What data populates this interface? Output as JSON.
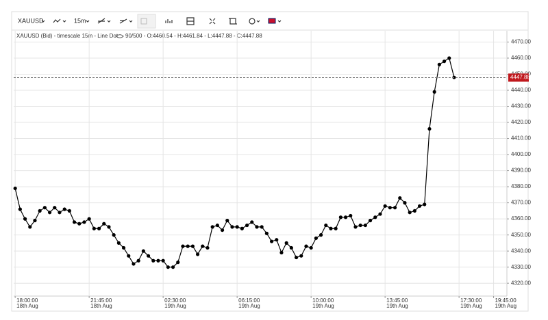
{
  "toolbar": {
    "symbol": "XAUUSD",
    "timeframe": "15m"
  },
  "chart_data": {
    "type": "line",
    "title": "XAUUSD (Bid) - timescale 15m - Line Dot",
    "subtitle": "90/500 - O:4460.54 - H:4461.84 - L:4447.88 - C:4447.88",
    "color": "#000000",
    "marker": true,
    "grid": true,
    "values": [
      4379,
      4366,
      4360,
      4355,
      4359,
      4365,
      4367,
      4364,
      4367,
      4364,
      4366,
      4365,
      4358,
      4357,
      4358,
      4360,
      4354,
      4354,
      4357,
      4355,
      4350,
      4345,
      4342,
      4337,
      4332,
      4334,
      4340,
      4337,
      4334,
      4334,
      4334,
      4330,
      4330,
      4333,
      4343,
      4343,
      4343,
      4338,
      4343,
      4342,
      4355,
      4356,
      4353,
      4359,
      4355,
      4355,
      4354,
      4356,
      4358,
      4355,
      4355,
      4351,
      4346,
      4347,
      4339,
      4345,
      4342,
      4336,
      4337,
      4343,
      4342,
      4348,
      4350,
      4356,
      4354,
      4354,
      4361,
      4361,
      4362,
      4355,
      4356,
      4356,
      4359,
      4361,
      4363,
      4368,
      4367,
      4367,
      4373,
      4370,
      4364,
      4365,
      4368,
      4369,
      4416,
      4439,
      4456,
      4458,
      4460,
      4448
    ],
    "last_value": 4447.88,
    "last_color": "#c0181d",
    "xlim": [
      -0.3,
      99.7
    ],
    "xticks": [
      {
        "value": 0,
        "label": "18:00:00",
        "date": "18th Aug"
      },
      {
        "value": 15,
        "label": "21:45:00",
        "date": "18th Aug"
      },
      {
        "value": 30,
        "label": "02:30:00",
        "date": "19th Aug"
      },
      {
        "value": 45,
        "label": "06:15:00",
        "date": "19th Aug"
      },
      {
        "value": 60,
        "label": "10:00:00",
        "date": "19th Aug"
      },
      {
        "value": 75,
        "label": "13:45:00",
        "date": "19th Aug"
      },
      {
        "value": 90,
        "label": "17:30:00",
        "date": "19th Aug"
      },
      {
        "value": 97,
        "label": "19:45:00",
        "date": "19th Aug"
      }
    ],
    "ylim": [
      4312,
      4477
    ],
    "yticks": [
      {
        "value": 4320,
        "label": "4320.00"
      },
      {
        "value": 4330,
        "label": "4330.00"
      },
      {
        "value": 4340,
        "label": "4340.00"
      },
      {
        "value": 4350,
        "label": "4350.00"
      },
      {
        "value": 4360,
        "label": "4360.00"
      },
      {
        "value": 4370,
        "label": "4370.00"
      },
      {
        "value": 4380,
        "label": "4380.00"
      },
      {
        "value": 4390,
        "label": "4390.00"
      },
      {
        "value": 4400,
        "label": "4400.00"
      },
      {
        "value": 4410,
        "label": "4410.00"
      },
      {
        "value": 4420,
        "label": "4420.00"
      },
      {
        "value": 4430,
        "label": "4430.00"
      },
      {
        "value": 4440,
        "label": "4440.00"
      },
      {
        "value": 4450,
        "label": "4450.00"
      },
      {
        "value": 4460,
        "label": "4460.00"
      },
      {
        "value": 4470,
        "label": "4470.00"
      }
    ]
  }
}
